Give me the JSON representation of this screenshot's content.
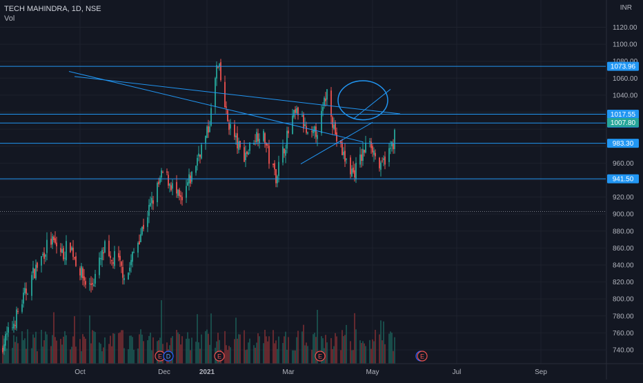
{
  "header": {
    "symbol": "TECH MAHINDRA, 1D, NSE",
    "volume_label": "Vol",
    "currency": "INR"
  },
  "colors": {
    "background": "#131722",
    "up": "#26a69a",
    "down": "#ef5350",
    "vol_up": "#1b5a55",
    "vol_down": "#7a2e33",
    "line": "#2196f3",
    "axis_text": "#b2b5be",
    "label_bg": "#2196f3",
    "current_price_bg": "#26a69a"
  },
  "chart_data": {
    "type": "candlestick",
    "title": "",
    "y_axis": {
      "ticks": [
        740,
        760,
        780,
        800,
        820,
        840,
        860,
        880,
        900,
        920,
        940,
        960,
        980,
        1000,
        1020,
        1040,
        1060,
        1080,
        1100,
        1120
      ],
      "tick_labels": [
        "740.00",
        "760.00",
        "780.00",
        "800.00",
        "820.00",
        "840.00",
        "860.00",
        "880.00",
        "900.00",
        "920.00",
        "",
        "960.00",
        "",
        "",
        "",
        "1040.00",
        "1060.00",
        "1080.00",
        "1100.00",
        "1120.00"
      ],
      "range": [
        730,
        1135
      ]
    },
    "x_axis": {
      "labels": [
        "Oct",
        "Dec",
        "2021",
        "Mar",
        "May",
        "Jul",
        "Sep"
      ],
      "label_positions_days": [
        0,
        61,
        92,
        151,
        212,
        273,
        334
      ]
    },
    "price_levels": [
      {
        "value": 1073.96,
        "label": "1073.96"
      },
      {
        "value": 1017.55,
        "label": "1017.55"
      },
      {
        "value": 1007.25,
        "label": "1007.25"
      },
      {
        "value": 983.3,
        "label": "983.30"
      },
      {
        "value": 941.5,
        "label": "941.50"
      }
    ],
    "current_price": {
      "value": 1007.8,
      "label": "1007.80"
    },
    "dotted_level": 903,
    "trendlines": [
      {
        "from": [
          -4,
          1062
        ],
        "to": [
          232,
          1018
        ]
      },
      {
        "from": [
          -8,
          1068
        ],
        "to": [
          205,
          985
        ]
      },
      {
        "from": [
          160,
          959
        ],
        "to": [
          212,
          1008
        ]
      },
      {
        "from": [
          198,
          1012
        ],
        "to": [
          225,
          1047
        ]
      }
    ],
    "annotation_ellipse": {
      "center": [
        205,
        1034
      ],
      "radius_days": 9,
      "radius_price": 23
    },
    "events": [
      {
        "day": 60,
        "label": "E"
      },
      {
        "day": 62,
        "label": "D"
      },
      {
        "day": 103,
        "label": "E"
      },
      {
        "day": 176,
        "label": "E"
      },
      {
        "day": 245,
        "label": "D"
      },
      {
        "day": 250,
        "label": "E"
      }
    ],
    "candles": [],
    "volumes": []
  }
}
